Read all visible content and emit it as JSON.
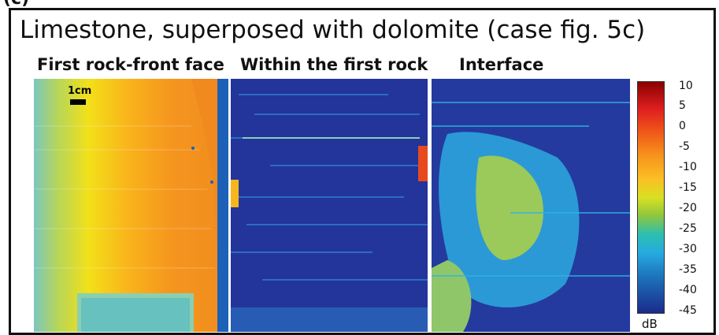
{
  "figure": {
    "panel_letter": "(c)",
    "title": "Limestone, superposed with dolomite (case fig. 5c)",
    "panels": [
      {
        "label": "First rock-front  face"
      },
      {
        "label": "Within the first rock"
      },
      {
        "label": "Interface"
      }
    ],
    "scale_bar_label": "1cm",
    "colorbar": {
      "ticks": [
        "10",
        "5",
        "0",
        "-5",
        "-10",
        "-15",
        "-20",
        "-25",
        "-30",
        "-35",
        "-40",
        "-45"
      ],
      "unit": "dB",
      "colors": [
        "#8b0000",
        "#e02020",
        "#f7941d",
        "#d9e021",
        "#2bbfb0",
        "#27aae1",
        "#1b2a8c"
      ]
    }
  }
}
